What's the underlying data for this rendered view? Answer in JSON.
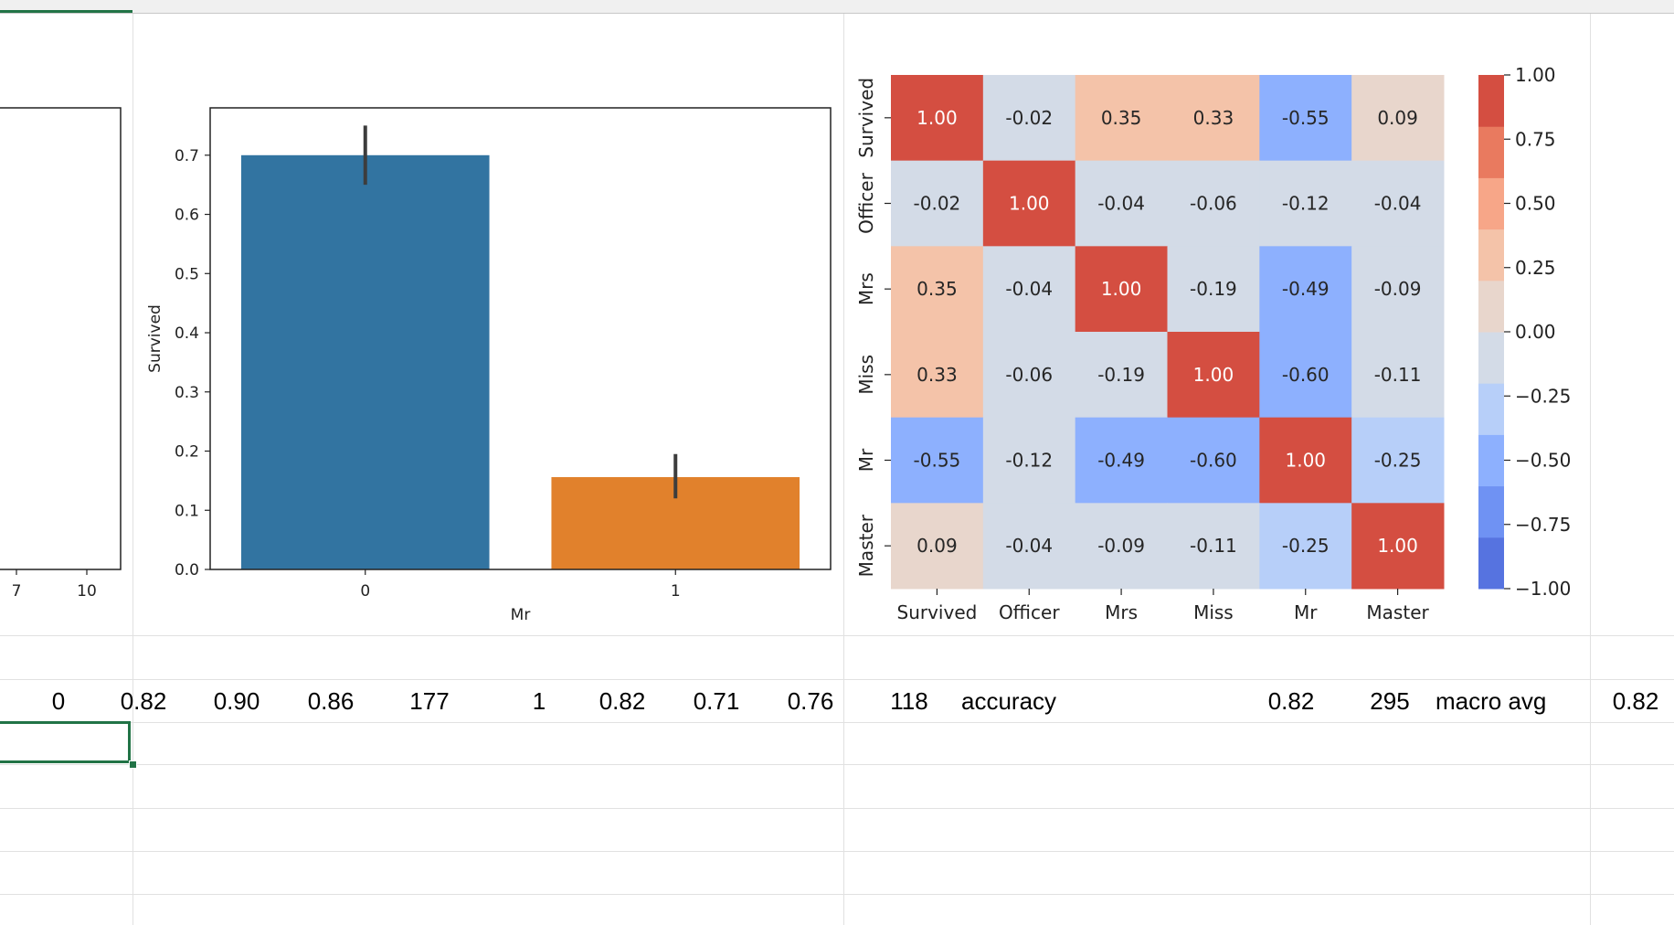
{
  "sheet_row": {
    "cells": [
      "0",
      "0.82",
      "0.90",
      "0.86",
      "177",
      "1",
      "0.82",
      "0.71",
      "0.76",
      "118",
      "accuracy",
      "0.82",
      "295",
      "macro avg",
      "0.82"
    ]
  },
  "chart_data": [
    {
      "type": "bar",
      "partial": true,
      "x_tick_labels": [
        "7",
        "10"
      ]
    },
    {
      "type": "bar",
      "categories": [
        "0",
        "1"
      ],
      "values": [
        0.7,
        0.156
      ],
      "error_bars": [
        [
          0.65,
          0.75
        ],
        [
          0.12,
          0.195
        ]
      ],
      "colors": [
        "#3274a1",
        "#e1812c"
      ],
      "xlabel": "Mr",
      "ylabel": "Survived",
      "ylim": [
        0,
        0.78
      ],
      "y_ticks": [
        "0.0",
        "0.1",
        "0.2",
        "0.3",
        "0.4",
        "0.5",
        "0.6",
        "0.7"
      ],
      "grid": false
    },
    {
      "type": "heatmap",
      "labels": [
        "Survived",
        "Officer",
        "Mrs",
        "Miss",
        "Mr",
        "Master"
      ],
      "values": [
        [
          1.0,
          -0.02,
          0.35,
          0.33,
          -0.55,
          0.09
        ],
        [
          -0.02,
          1.0,
          -0.04,
          -0.06,
          -0.12,
          -0.04
        ],
        [
          0.35,
          -0.04,
          1.0,
          -0.19,
          -0.49,
          -0.09
        ],
        [
          0.33,
          -0.06,
          -0.19,
          1.0,
          -0.6,
          -0.11
        ],
        [
          -0.55,
          -0.12,
          -0.49,
          -0.6,
          1.0,
          -0.25
        ],
        [
          0.09,
          -0.04,
          -0.09,
          -0.11,
          -0.25,
          1.0
        ]
      ],
      "value_format": "2 decimals",
      "colormap": "coolwarm (10 discrete levels)",
      "colormap_colors": [
        "#5673e0",
        "#6f92f3",
        "#8db0fe",
        "#b7cff9",
        "#d3dbe7",
        "#e8d6cc",
        "#f4c3a9",
        "#f7a688",
        "#e97a5f",
        "#d44e41"
      ],
      "vmin": -1.0,
      "vmax": 1.0,
      "colorbar_ticks": [
        "1.00",
        "0.75",
        "0.50",
        "0.25",
        "0.00",
        "−0.25",
        "−0.50",
        "−0.75",
        "−1.00"
      ],
      "colorbar_position": "right"
    }
  ]
}
